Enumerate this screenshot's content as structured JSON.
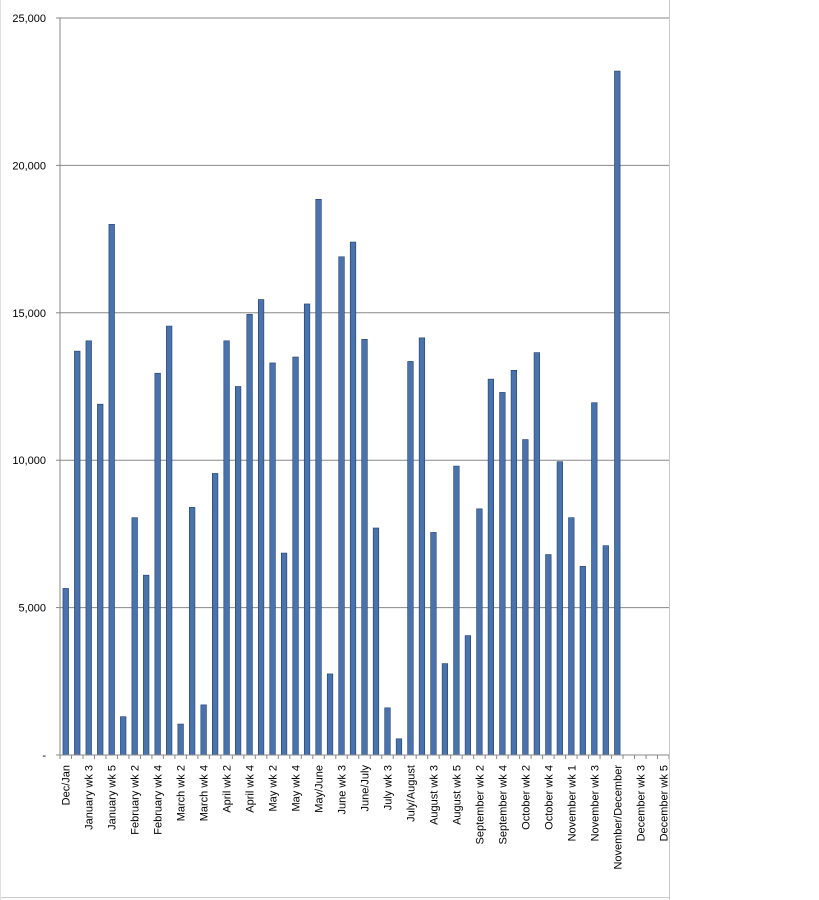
{
  "chart_data": {
    "type": "bar",
    "title": "",
    "xlabel": "",
    "ylabel": "",
    "ylim": [
      0,
      25000
    ],
    "ytick_values": [
      0,
      5000,
      10000,
      15000,
      20000,
      25000
    ],
    "ytick_labels": [
      "-",
      "5,000",
      "10,000",
      "15,000",
      "20,000",
      "25,000"
    ],
    "grid": true,
    "legend": "none",
    "bar_color": "#4a73ad",
    "bar_edge_color": "#1f3d6b",
    "gridline_color": "#888888",
    "categories": [
      "Dec/Jan",
      "",
      "January wk 3",
      "",
      "January wk 5",
      "",
      "February wk 2",
      "",
      "February wk 4",
      "",
      "March wk 2",
      "",
      "March wk 4",
      "",
      "April wk 2",
      "",
      "April wk 4",
      "",
      "May wk 2",
      "",
      "May wk 4",
      "",
      "May/June",
      "",
      "June wk 3",
      "",
      "June/July",
      "",
      "July wk 3",
      "",
      "July/August",
      "",
      "August wk 3",
      "",
      "August wk 5",
      "",
      "September wk 2",
      "",
      "September wk 4",
      "",
      "October wk 2",
      "",
      "October wk 4",
      "",
      "November wk 1",
      "",
      "November wk 3",
      "",
      "November/December",
      "",
      "December wk 3",
      "",
      "December wk 5"
    ],
    "values": [
      5650,
      13700,
      14050,
      11900,
      18000,
      1300,
      8050,
      6100,
      12950,
      14550,
      1050,
      8400,
      1700,
      9550,
      14050,
      12500,
      14950,
      15450,
      13300,
      6850,
      13500,
      15300,
      18850,
      2750,
      16900,
      17400,
      14100,
      7700,
      1600,
      550,
      13350,
      14150,
      7550,
      3100,
      9800,
      4050,
      8350,
      12750,
      12300,
      13050,
      10700,
      13650,
      6800,
      9950,
      8050,
      6400,
      11950,
      7100,
      23200,
      null,
      null,
      null,
      null
    ]
  }
}
